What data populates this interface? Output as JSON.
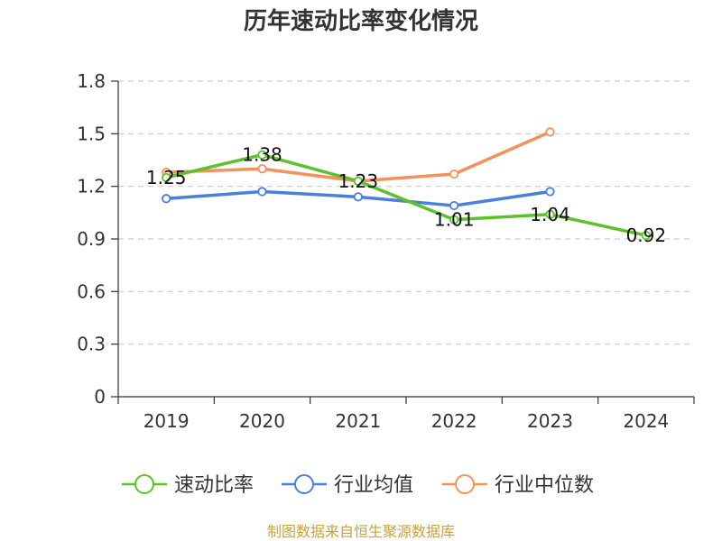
{
  "chart_data": {
    "type": "line",
    "title": "历年速动比率变化情况",
    "categories": [
      "2019",
      "2020",
      "2021",
      "2022",
      "2023",
      "2024"
    ],
    "ylim": [
      0,
      1.8
    ],
    "yticks": [
      "0",
      "0.3",
      "0.6",
      "0.9",
      "1.2",
      "1.5",
      "1.8"
    ],
    "ytick_values": [
      0,
      0.3,
      0.6,
      0.9,
      1.2,
      1.5,
      1.8
    ],
    "grid": true,
    "legend_position": "bottom",
    "series": [
      {
        "name": "速动比率",
        "color": "#5cc12b",
        "values": [
          1.25,
          1.38,
          1.23,
          1.01,
          1.04,
          0.92
        ],
        "labels": [
          "1.25",
          "1.38",
          "1.23",
          "1.01",
          "1.04",
          "0.92"
        ],
        "show_labels": true
      },
      {
        "name": "行业均值",
        "color": "#4a7fdb",
        "values": [
          1.13,
          1.17,
          1.14,
          1.09,
          1.17,
          null
        ],
        "show_labels": false
      },
      {
        "name": "行业中位数",
        "color": "#f5925b",
        "values": [
          1.28,
          1.3,
          1.23,
          1.27,
          1.51,
          null
        ],
        "show_labels": false
      }
    ],
    "source": "制图数据来自恒生聚源数据库"
  }
}
